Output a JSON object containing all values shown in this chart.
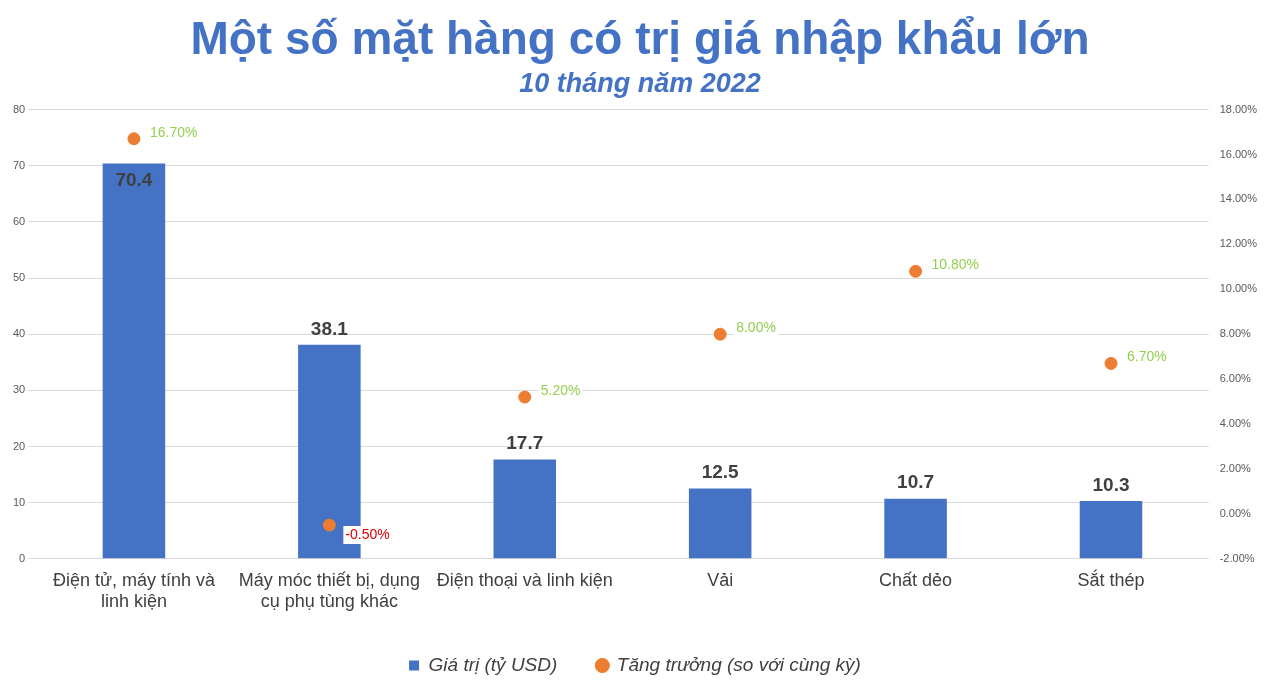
{
  "chart_data": {
    "type": "bar",
    "title": "Một số mặt hàng có trị giá nhập khẩu lớn",
    "subtitle": "10 tháng năm 2022",
    "categories": [
      "Điện tử, máy tính và linh kiện",
      "Máy móc thiết bị, dụng cụ phụ tùng khác",
      "Điện thoại và linh kiện",
      "Vải",
      "Chất dẻo",
      "Sắt thép"
    ],
    "series": [
      {
        "name": "Giá trị (tỷ USD)",
        "color": "#4472c4",
        "values": [
          70.4,
          38.1,
          17.7,
          12.5,
          10.7,
          10.3
        ],
        "value_labels": [
          "70.4",
          "38.1",
          "17.7",
          "12.5",
          "10.7",
          "10.3"
        ]
      },
      {
        "name": "Tăng trưởng (so với cùng kỳ)",
        "type": "scatter",
        "axis": "y2",
        "color": "#ed7d31",
        "values": [
          16.7,
          -0.5,
          5.2,
          8.0,
          10.8,
          6.7
        ],
        "value_labels": [
          "16.70%",
          "-0.50%",
          "5.20%",
          "8.00%",
          "10.80%",
          "6.70%"
        ]
      }
    ],
    "ylim": [
      0,
      80
    ],
    "yticks": [
      0,
      10,
      20,
      30,
      40,
      50,
      60,
      70,
      80
    ],
    "y2lim": [
      -2,
      18
    ],
    "y2ticks": [
      {
        "value": -2,
        "label": "-2.00%"
      },
      {
        "value": 0,
        "label": "0.00%"
      },
      {
        "value": 2,
        "label": "2.00%"
      },
      {
        "value": 4,
        "label": "4.00%"
      },
      {
        "value": 6,
        "label": "6.00%"
      },
      {
        "value": 8,
        "label": "8.00%"
      },
      {
        "value": 10,
        "label": "10.00%"
      },
      {
        "value": 12,
        "label": "12.00%"
      },
      {
        "value": 14,
        "label": "14.00%"
      },
      {
        "value": 16,
        "label": "16.00%"
      },
      {
        "value": 18,
        "label": "18.00%"
      }
    ],
    "grid": "y",
    "legend": "bottom",
    "marker": "circle"
  }
}
